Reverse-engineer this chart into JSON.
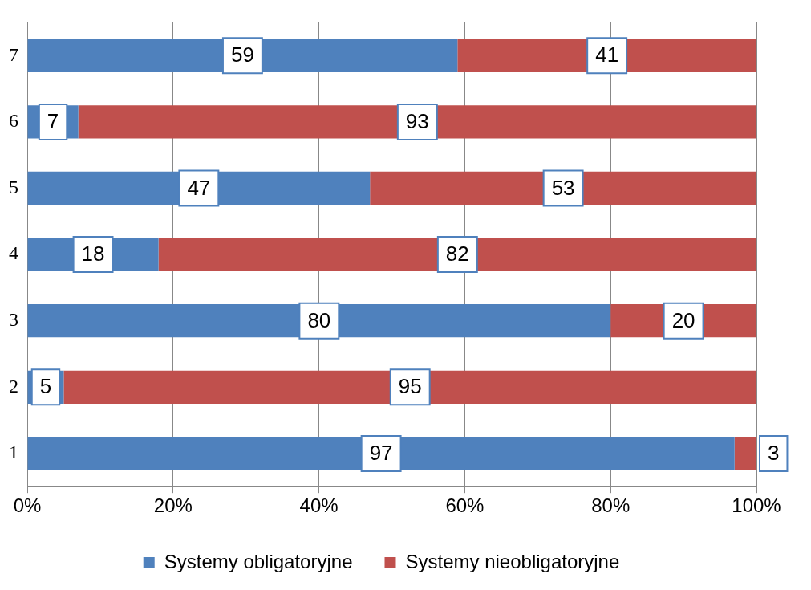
{
  "chart_data": {
    "type": "bar",
    "orientation": "horizontal",
    "stacked": true,
    "categories": [
      "7",
      "6",
      "5",
      "4",
      "3",
      "2",
      "1"
    ],
    "series": [
      {
        "name": "Systemy obligatoryjne",
        "color": "#4f81bd",
        "values": [
          59,
          7,
          47,
          18,
          80,
          5,
          97
        ]
      },
      {
        "name": "Systemy nieobligatoryjne",
        "color": "#c0504d",
        "values": [
          41,
          93,
          53,
          82,
          20,
          95,
          3
        ]
      }
    ],
    "xlim": [
      0,
      100
    ],
    "xticks": [
      {
        "value": 0,
        "label": "0%"
      },
      {
        "value": 20,
        "label": "20%"
      },
      {
        "value": 40,
        "label": "40%"
      },
      {
        "value": 60,
        "label": "60%"
      },
      {
        "value": 80,
        "label": "80%"
      },
      {
        "value": 100,
        "label": "100%"
      }
    ],
    "grid": "x",
    "legend": "bottom",
    "data_labels": true
  }
}
